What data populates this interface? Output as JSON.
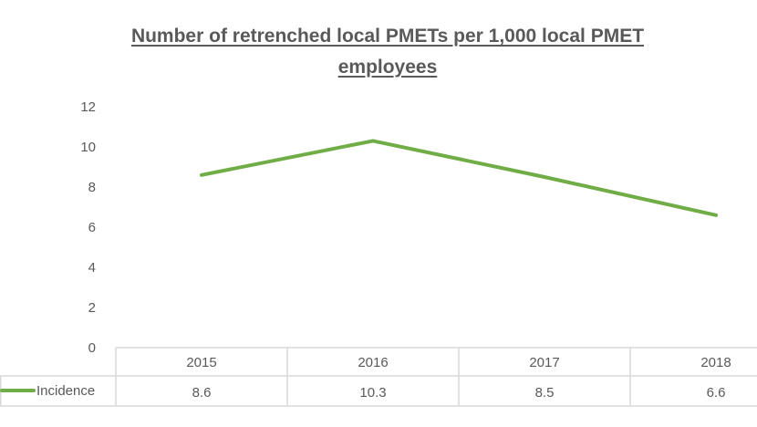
{
  "chart_data": {
    "type": "line",
    "title_lines": [
      "Number of retrenched local PMETs per 1,000 local PMET",
      "employees"
    ],
    "categories": [
      "2015",
      "2016",
      "2017",
      "2018"
    ],
    "series": [
      {
        "name": "Incidence",
        "values": [
          8.6,
          10.3,
          8.5,
          6.6
        ]
      }
    ],
    "value_labels": [
      "8.6",
      "10.3",
      "8.5",
      "6.6"
    ],
    "ylim": [
      0,
      12
    ],
    "yticks": [
      "0",
      "2",
      "4",
      "6",
      "8",
      "10",
      "12"
    ],
    "grid": false,
    "legend": "data-table",
    "data_table": true,
    "colors": {
      "series": "#70ad47",
      "table_border": "#d9d9d9",
      "text": "#595959"
    }
  }
}
